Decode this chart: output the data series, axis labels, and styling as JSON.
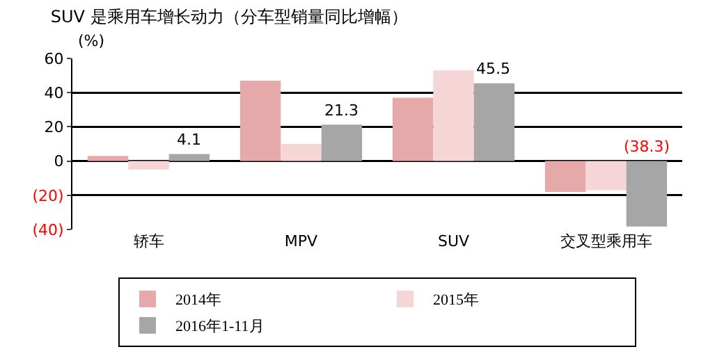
{
  "chart_data": {
    "type": "bar",
    "title": "SUV 是乘用车增长动力（分车型销量同比增幅）",
    "ylabel": "(%)",
    "categories": [
      "轿车",
      "MPV",
      "SUV",
      "交叉型乘用车"
    ],
    "series": [
      {
        "name": "2014年",
        "color": "#e6a9aa",
        "values": [
          3,
          47,
          37,
          -18
        ]
      },
      {
        "name": "2015年",
        "color": "#f5d5d6",
        "values": [
          -5,
          10,
          53,
          -17
        ]
      },
      {
        "name": "2016年1-11月",
        "color": "#a6a6a6",
        "values": [
          4.1,
          21.3,
          45.5,
          -38.3
        ],
        "value_labels": [
          "4.1",
          "21.3",
          "45.5",
          "(38.3)"
        ]
      }
    ],
    "ylim": [
      -40,
      60
    ],
    "yticks": [
      {
        "value": -40,
        "label": "(40)"
      },
      {
        "value": -20,
        "label": "(20)"
      },
      0,
      20,
      40,
      60
    ],
    "grid": "y",
    "legend": "bottom"
  }
}
